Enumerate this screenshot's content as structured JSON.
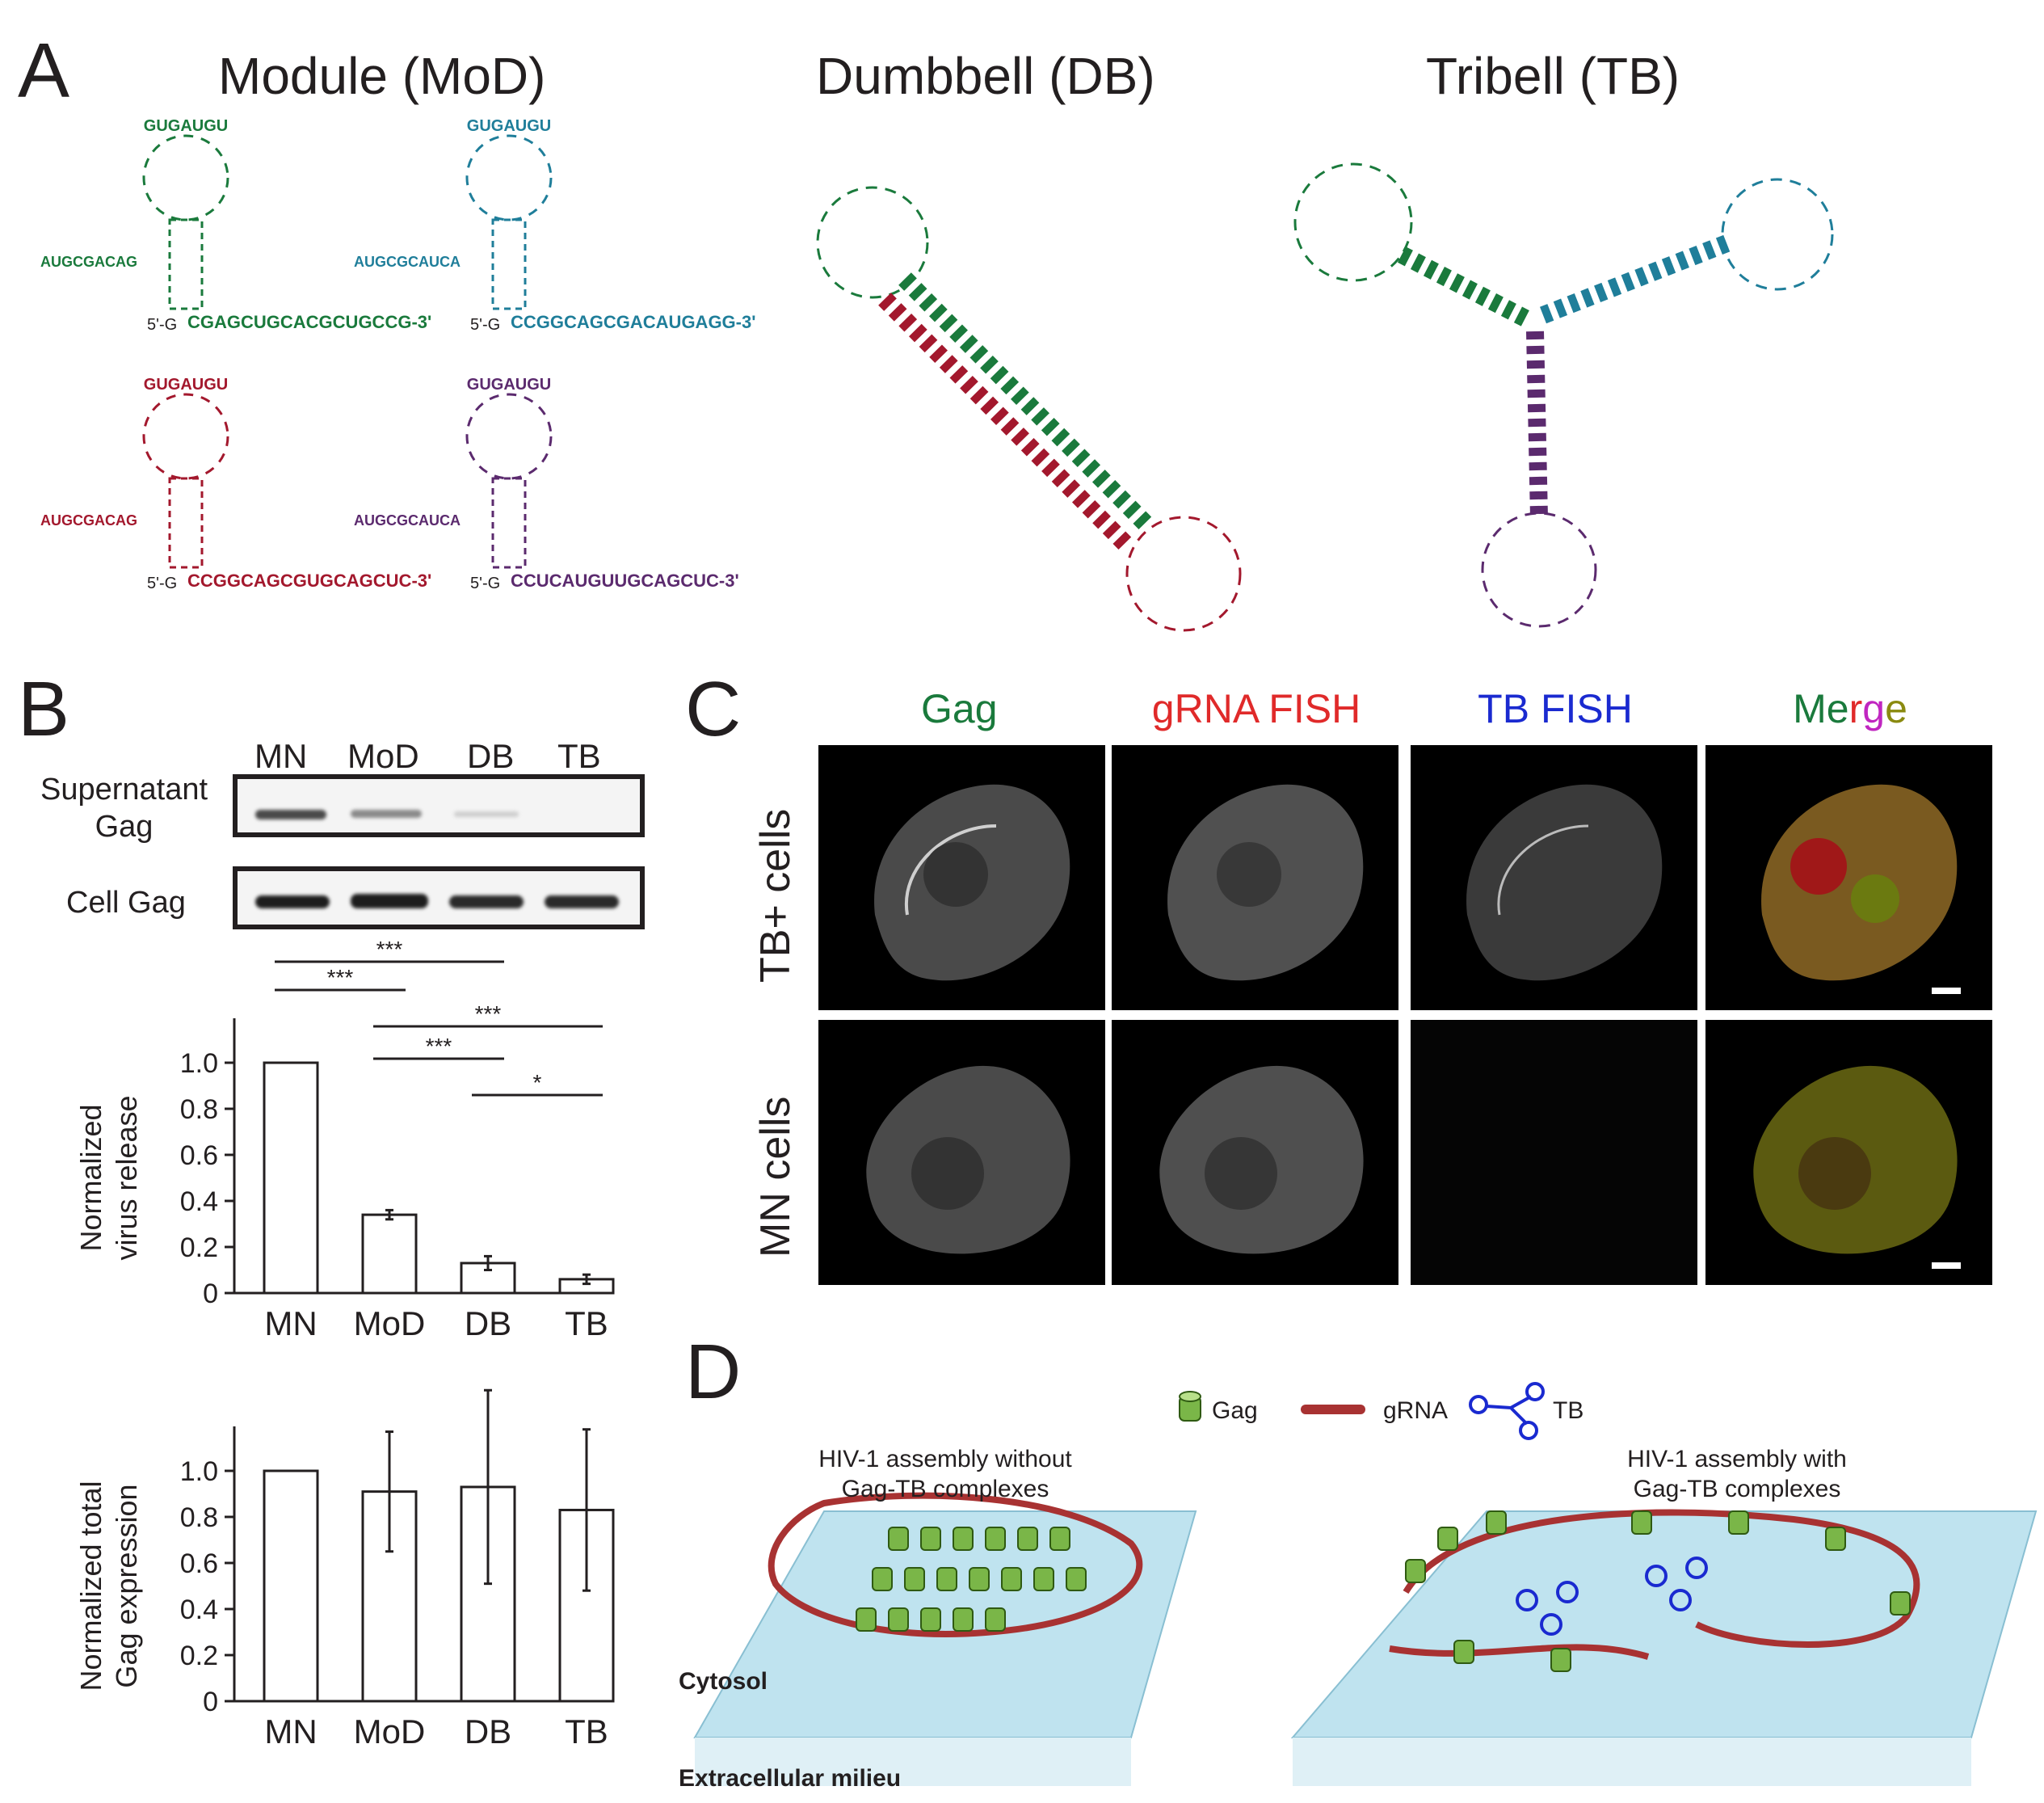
{
  "panels": {
    "A": {
      "letter": "A",
      "titles": {
        "module": "Module (MoD)",
        "dumbbell": "Dumbbell (DB)",
        "tribell": "Tribell (TB)"
      },
      "modules": [
        {
          "color": "#1a7a3c",
          "loop": "GUGAUGU",
          "stem_left": "AUGCGACAG",
          "tail": "CGAGCUGCACGCUGCCG-3'",
          "five": "5'-G"
        },
        {
          "color": "#1f7e9a",
          "loop": "GUGAUGU",
          "stem_left": "AUGCGCAUCA",
          "tail": "CCGGCAGCGACAUGAGG-3'",
          "five": "5'-G"
        },
        {
          "color": "#a3182d",
          "loop": "GUGAUGU",
          "stem_left": "AUGCGACAG",
          "tail": "CCGGCAGCGUGCAGCUC-3'",
          "five": "5'-G"
        },
        {
          "color": "#5b2a6e",
          "loop": "GUGAUGU",
          "stem_left": "AUGCGCAUCA",
          "tail": "CCUCAUGUUGCAGCUC-3'",
          "five": "5'-G"
        }
      ]
    },
    "B": {
      "letter": "B",
      "lanes": [
        "MN",
        "MoD",
        "DB",
        "TB"
      ],
      "blot_labels": {
        "supernatant": "Supernatant\nGag",
        "cell": "Cell Gag"
      }
    },
    "C": {
      "letter": "C",
      "columns": [
        "Gag",
        "gRNA FISH",
        "TB FISH",
        "Merge"
      ],
      "column_colors": [
        "#1a7a3c",
        "#e02a2a",
        "#1a2ad0",
        "#1a7a3c"
      ],
      "rows": [
        "TB+ cells",
        "MN cells"
      ]
    },
    "D": {
      "letter": "D",
      "legend": {
        "gag": "Gag",
        "grna": "gRNA",
        "tb": "TB"
      },
      "left_title": "HIV-1 assembly without\nGag-TB complexes",
      "right_title": "HIV-1 assembly with\nGag-TB complexes",
      "cytosol": "Cytosol",
      "extracellular": "Extracellular milieu"
    }
  },
  "chart_data": [
    {
      "type": "bar",
      "categories": [
        "MN",
        "MoD",
        "DB",
        "TB"
      ],
      "values": [
        1.0,
        0.34,
        0.13,
        0.06
      ],
      "errors": [
        0,
        0.02,
        0.03,
        0.02
      ],
      "ylabel": "Normalized\nvirus release",
      "ylim": [
        0,
        1.0
      ],
      "yticks": [
        "0",
        "0.2",
        "0.4",
        "0.6",
        "0.8",
        "1.0"
      ],
      "significance": [
        {
          "from": 0,
          "to": 3,
          "label": "***"
        },
        {
          "from": 0,
          "to": 2,
          "label": "***"
        },
        {
          "from": 0,
          "to": 1,
          "label": "***"
        },
        {
          "from": 1,
          "to": 3,
          "label": "***"
        },
        {
          "from": 1,
          "to": 2,
          "label": "***"
        },
        {
          "from": 2,
          "to": 3,
          "label": "*"
        }
      ]
    },
    {
      "type": "bar",
      "categories": [
        "MN",
        "MoD",
        "DB",
        "TB"
      ],
      "values": [
        1.0,
        0.91,
        0.93,
        0.83
      ],
      "errors": [
        0,
        0.26,
        0.42,
        0.35
      ],
      "ylabel": "Normalized total\nGag expression",
      "ylim": [
        0,
        1.0
      ],
      "yticks": [
        "0",
        "0.2",
        "0.4",
        "0.6",
        "0.8",
        "1.0"
      ]
    }
  ]
}
